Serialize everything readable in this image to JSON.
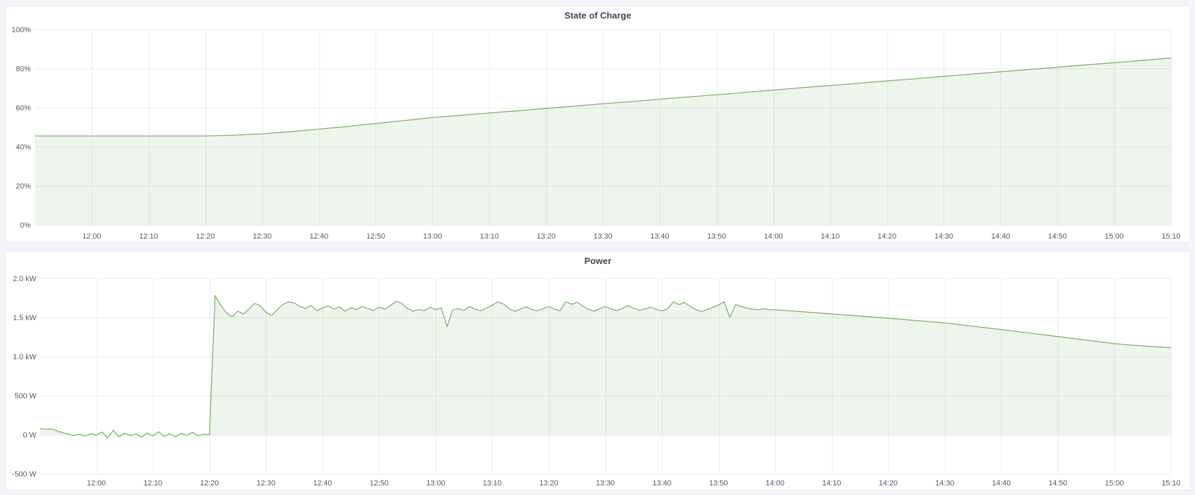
{
  "page": {
    "background": "#f4f5f9",
    "panel_background": "#ffffff",
    "panel_border": "#e3e8ee",
    "grid_color": "#ebebed",
    "tick_text_color": "#55585e",
    "title_color": "#3e4350",
    "accent_green": "#72ad60",
    "area_fill_green": "rgba(114,173,96,0.12)"
  },
  "panels": [
    {
      "title": "State of Charge"
    },
    {
      "title": "Power"
    }
  ],
  "chart_data": [
    {
      "type": "area",
      "title": "State of Charge",
      "unit": "percent",
      "grid": true,
      "legend": "none",
      "time_start": "11:50",
      "time_end": "15:10",
      "xlim_minutes": [
        0,
        200
      ],
      "ylim": [
        0,
        100
      ],
      "fill_to_value": 0,
      "x_ticks": {
        "minutes": [
          10,
          20,
          30,
          40,
          50,
          60,
          70,
          80,
          90,
          100,
          110,
          120,
          130,
          140,
          150,
          160,
          170,
          180,
          190,
          200
        ],
        "labels": [
          "12:00",
          "12:10",
          "12:20",
          "12:30",
          "12:40",
          "12:50",
          "13:00",
          "13:10",
          "13:20",
          "13:30",
          "13:40",
          "13:50",
          "14:00",
          "14:10",
          "14:20",
          "14:30",
          "14:40",
          "14:50",
          "15:00",
          "15:10"
        ]
      },
      "y_ticks": {
        "values": [
          0,
          20,
          40,
          60,
          80,
          100
        ],
        "labels": [
          "0%",
          "20%",
          "40%",
          "60%",
          "80%",
          "100%"
        ]
      },
      "series": [
        {
          "name": "State of Charge",
          "minutes": [
            0,
            5,
            10,
            15,
            20,
            25,
            30,
            35,
            40,
            45,
            50,
            55,
            60,
            65,
            70,
            75,
            80,
            85,
            90,
            95,
            100,
            105,
            110,
            115,
            120,
            125,
            130,
            135,
            140,
            145,
            150,
            155,
            160,
            165,
            170,
            175,
            180,
            185,
            190,
            195,
            200
          ],
          "values": [
            45.5,
            45.5,
            45.5,
            45.5,
            45.5,
            45.5,
            45.5,
            45.9,
            46.6,
            47.7,
            49.0,
            50.4,
            51.9,
            53.4,
            54.9,
            56.1,
            57.3,
            58.4,
            59.6,
            60.8,
            62.0,
            63.1,
            64.3,
            65.5,
            66.6,
            67.8,
            69.0,
            70.2,
            71.3,
            72.5,
            73.7,
            74.8,
            76.0,
            77.2,
            78.4,
            79.5,
            80.7,
            81.9,
            83.0,
            84.2,
            85.4
          ]
        }
      ]
    },
    {
      "type": "area",
      "title": "Power",
      "unit": "watts",
      "grid": true,
      "legend": "none",
      "time_start": "11:50",
      "time_end": "15:10",
      "xlim_minutes": [
        0,
        200
      ],
      "ylim": [
        -500,
        2000
      ],
      "fill_to_value": 0,
      "x_ticks": {
        "minutes": [
          10,
          20,
          30,
          40,
          50,
          60,
          70,
          80,
          90,
          100,
          110,
          120,
          130,
          140,
          150,
          160,
          170,
          180,
          190,
          200
        ],
        "labels": [
          "12:00",
          "12:10",
          "12:20",
          "12:30",
          "12:40",
          "12:50",
          "13:00",
          "13:10",
          "13:20",
          "13:30",
          "13:40",
          "13:50",
          "14:00",
          "14:10",
          "14:20",
          "14:30",
          "14:40",
          "14:50",
          "15:00",
          "15:10"
        ]
      },
      "y_ticks": {
        "values": [
          -500,
          0,
          500,
          1000,
          1500,
          2000
        ],
        "labels": [
          "-500 W",
          "0 W",
          "500 W",
          "1.0 kW",
          "1.5 kW",
          "2.0 kW"
        ]
      },
      "series": [
        {
          "name": "Power",
          "minutes": [
            0,
            1,
            2,
            3,
            4,
            5,
            6,
            7,
            8,
            9,
            10,
            11,
            12,
            13,
            14,
            15,
            16,
            17,
            18,
            19,
            20,
            21,
            22,
            23,
            24,
            25,
            26,
            27,
            28,
            29,
            30,
            31,
            32,
            33,
            34,
            35,
            36,
            37,
            38,
            39,
            40,
            41,
            42,
            43,
            44,
            45,
            46,
            47,
            48,
            49,
            50,
            51,
            52,
            53,
            54,
            55,
            56,
            57,
            58,
            59,
            60,
            61,
            62,
            63,
            64,
            65,
            66,
            67,
            68,
            69,
            70,
            71,
            72,
            73,
            74,
            75,
            76,
            77,
            78,
            79,
            80,
            81,
            82,
            83,
            84,
            85,
            86,
            87,
            88,
            89,
            90,
            91,
            92,
            93,
            94,
            95,
            96,
            97,
            98,
            99,
            100,
            101,
            102,
            103,
            104,
            105,
            106,
            107,
            108,
            109,
            110,
            111,
            112,
            113,
            114,
            115,
            116,
            117,
            118,
            119,
            120,
            121,
            122,
            123,
            124,
            125,
            126,
            127,
            128,
            129,
            130,
            132,
            134,
            136,
            138,
            140,
            142,
            144,
            146,
            148,
            150,
            152,
            154,
            156,
            158,
            160,
            162,
            164,
            166,
            168,
            170,
            172,
            174,
            176,
            178,
            180,
            182,
            184,
            186,
            188,
            190,
            192,
            194,
            196,
            198,
            200
          ],
          "values": [
            78,
            70,
            74,
            52,
            25,
            8,
            -12,
            6,
            -18,
            12,
            -8,
            34,
            -42,
            55,
            -28,
            18,
            -12,
            8,
            -32,
            22,
            -18,
            38,
            -22,
            12,
            -28,
            18,
            -8,
            30,
            -15,
            5,
            -2,
            1782,
            1655,
            1560,
            1510,
            1580,
            1545,
            1610,
            1680,
            1650,
            1565,
            1525,
            1600,
            1665,
            1700,
            1685,
            1640,
            1615,
            1655,
            1585,
            1620,
            1650,
            1605,
            1635,
            1580,
            1625,
            1598,
            1640,
            1612,
            1588,
            1632,
            1605,
            1650,
            1710,
            1680,
            1615,
            1580,
            1602,
            1585,
            1630,
            1600,
            1618,
            1380,
            1595,
            1615,
            1588,
            1640,
            1605,
            1585,
            1622,
            1655,
            1700,
            1672,
            1610,
            1580,
            1608,
            1635,
            1600,
            1585,
            1612,
            1640,
            1605,
            1588,
            1702,
            1668,
            1695,
            1645,
            1605,
            1580,
            1612,
            1640,
            1608,
            1588,
            1615,
            1652,
            1618,
            1590,
            1608,
            1632,
            1602,
            1585,
            1610,
            1700,
            1665,
            1690,
            1640,
            1600,
            1575,
            1602,
            1628,
            1660,
            1700,
            1500,
            1665,
            1640,
            1620,
            1605,
            1598,
            1610,
            1600,
            1598,
            1588,
            1577,
            1566,
            1556,
            1545,
            1534,
            1523,
            1512,
            1501,
            1490,
            1478,
            1466,
            1454,
            1442,
            1430,
            1413,
            1396,
            1379,
            1362,
            1345,
            1327,
            1309,
            1291,
            1273,
            1255,
            1237,
            1219,
            1201,
            1183,
            1165,
            1152,
            1140,
            1130,
            1122,
            1115
          ]
        }
      ]
    }
  ]
}
